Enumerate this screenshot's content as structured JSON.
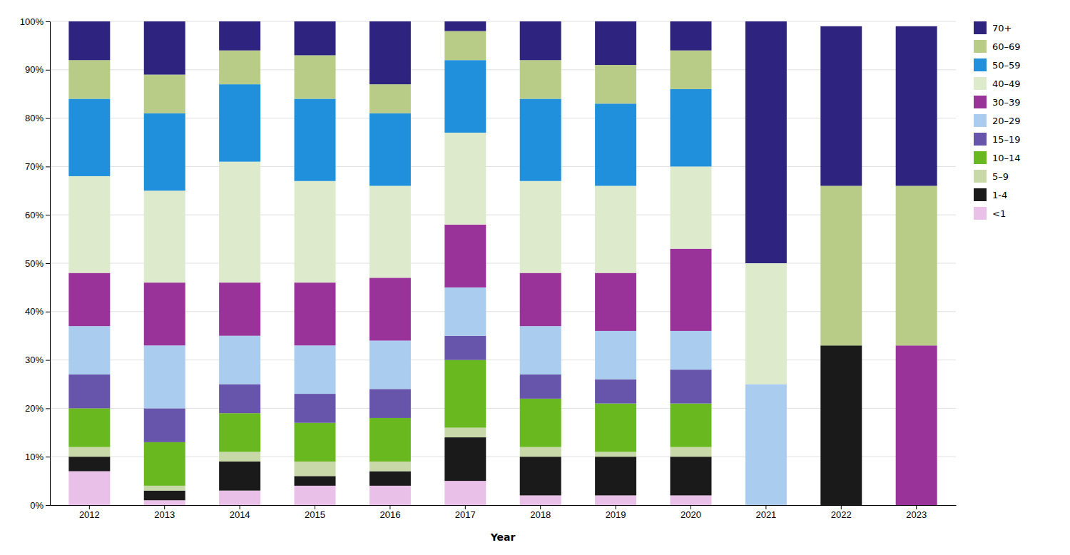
{
  "chart_data": {
    "type": "bar",
    "stacked": true,
    "grid": true,
    "legend": "right",
    "xlabel": "Year",
    "categories": [
      "2012",
      "2013",
      "2014",
      "2015",
      "2016",
      "2017",
      "2018",
      "2019",
      "2020",
      "2021",
      "2022",
      "2023"
    ],
    "ylim": [
      0,
      100
    ],
    "yticks": [
      {
        "value": 0,
        "label": "0%"
      },
      {
        "value": 10,
        "label": "10%"
      },
      {
        "value": 20,
        "label": "20%"
      },
      {
        "value": 30,
        "label": "30%"
      },
      {
        "value": 40,
        "label": "40%"
      },
      {
        "value": 50,
        "label": "50%"
      },
      {
        "value": 60,
        "label": "60%"
      },
      {
        "value": 70,
        "label": "70%"
      },
      {
        "value": 80,
        "label": "80%"
      },
      {
        "value": 90,
        "label": "90%"
      },
      {
        "value": 100,
        "label": "100%"
      }
    ],
    "series": [
      {
        "name": "<1",
        "color": "#e8c0e8",
        "values": [
          7,
          1,
          3,
          4,
          4,
          5,
          2,
          2,
          2,
          0,
          0,
          0
        ]
      },
      {
        "name": "1-4",
        "color": "#1a1a1a",
        "values": [
          3,
          2,
          6,
          2,
          3,
          9,
          8,
          8,
          8,
          0,
          33,
          0
        ]
      },
      {
        "name": "5–9",
        "color": "#c8d8a8",
        "values": [
          2,
          1,
          2,
          3,
          2,
          2,
          2,
          1,
          2,
          0,
          0,
          0
        ]
      },
      {
        "name": "10–14",
        "color": "#6ab820",
        "values": [
          8,
          9,
          8,
          8,
          9,
          14,
          10,
          10,
          9,
          0,
          0,
          0
        ]
      },
      {
        "name": "15–19",
        "color": "#6655aa",
        "values": [
          7,
          7,
          6,
          6,
          6,
          5,
          5,
          5,
          7,
          0,
          0,
          0
        ]
      },
      {
        "name": "20–29",
        "color": "#aaccee",
        "values": [
          10,
          13,
          10,
          10,
          10,
          10,
          10,
          10,
          8,
          25,
          0,
          0
        ]
      },
      {
        "name": "30–39",
        "color": "#993399",
        "values": [
          11,
          13,
          11,
          13,
          13,
          13,
          11,
          12,
          17,
          0,
          0,
          33
        ]
      },
      {
        "name": "40–49",
        "color": "#ddeacc",
        "values": [
          20,
          19,
          25,
          21,
          19,
          19,
          19,
          18,
          17,
          25,
          0,
          0
        ]
      },
      {
        "name": "50–59",
        "color": "#2090dd",
        "values": [
          16,
          16,
          16,
          17,
          15,
          15,
          17,
          17,
          16,
          0,
          0,
          0
        ]
      },
      {
        "name": "60–69",
        "color": "#b8cc88",
        "values": [
          8,
          8,
          7,
          9,
          6,
          6,
          8,
          8,
          8,
          0,
          33,
          33
        ]
      },
      {
        "name": "70+",
        "color": "#2e2480",
        "values": [
          8,
          11,
          6,
          7,
          13,
          2,
          8,
          9,
          6,
          50,
          33,
          33
        ]
      }
    ]
  }
}
